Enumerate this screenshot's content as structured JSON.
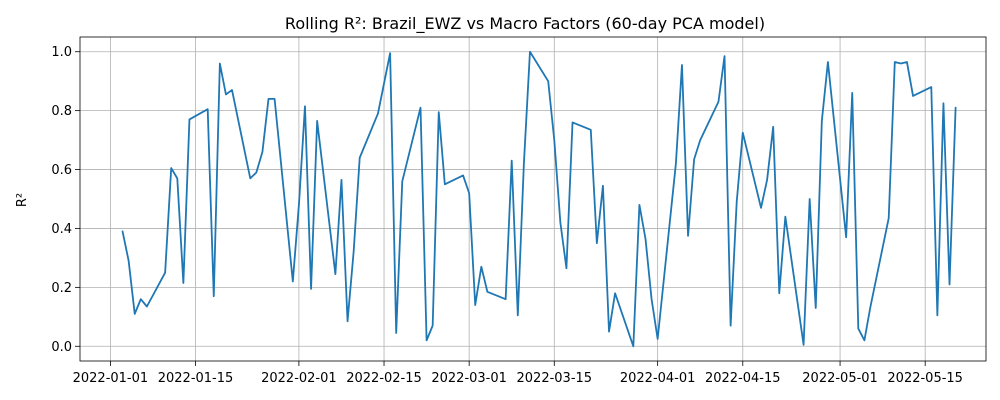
{
  "chart_data": {
    "type": "line",
    "title": "Rolling R²: Brazil_EWZ vs Macro Factors (60-day PCA model)",
    "xlabel": "",
    "ylabel": "R²",
    "xlim": [
      "2021-12-27",
      "2022-05-25"
    ],
    "ylim": [
      -0.05,
      1.05
    ],
    "grid": true,
    "x_ticks": [
      "2022-01-01",
      "2022-01-15",
      "2022-02-01",
      "2022-02-15",
      "2022-03-01",
      "2022-03-15",
      "2022-04-01",
      "2022-04-15",
      "2022-05-01",
      "2022-05-15"
    ],
    "y_ticks": [
      "0.0",
      "0.2",
      "0.4",
      "0.6",
      "0.8",
      "1.0"
    ],
    "series_color": "#1f77b4",
    "series": [
      {
        "points": [
          [
            "2022-01-03",
            0.39
          ],
          [
            "2022-01-04",
            0.29
          ],
          [
            "2022-01-05",
            0.11
          ],
          [
            "2022-01-06",
            0.16
          ],
          [
            "2022-01-07",
            0.135
          ],
          [
            "2022-01-10",
            0.25
          ],
          [
            "2022-01-11",
            0.605
          ],
          [
            "2022-01-12",
            0.57
          ],
          [
            "2022-01-13",
            0.215
          ],
          [
            "2022-01-14",
            0.77
          ],
          [
            "2022-01-17",
            0.805
          ],
          [
            "2022-01-18",
            0.17
          ],
          [
            "2022-01-19",
            0.96
          ],
          [
            "2022-01-20",
            0.855
          ],
          [
            "2022-01-21",
            0.87
          ],
          [
            "2022-01-24",
            0.57
          ],
          [
            "2022-01-25",
            0.59
          ],
          [
            "2022-01-26",
            0.66
          ],
          [
            "2022-01-27",
            0.84
          ],
          [
            "2022-01-28",
            0.84
          ],
          [
            "2022-01-31",
            0.22
          ],
          [
            "2022-02-01",
            0.48
          ],
          [
            "2022-02-02",
            0.815
          ],
          [
            "2022-02-03",
            0.195
          ],
          [
            "2022-02-04",
            0.765
          ],
          [
            "2022-02-07",
            0.245
          ],
          [
            "2022-02-08",
            0.565
          ],
          [
            "2022-02-09",
            0.085
          ],
          [
            "2022-02-10",
            0.32
          ],
          [
            "2022-02-11",
            0.64
          ],
          [
            "2022-02-14",
            0.79
          ],
          [
            "2022-02-16",
            0.995
          ],
          [
            "2022-02-17",
            0.045
          ],
          [
            "2022-02-18",
            0.56
          ],
          [
            "2022-02-21",
            0.81
          ],
          [
            "2022-02-22",
            0.02
          ],
          [
            "2022-02-23",
            0.07
          ],
          [
            "2022-02-24",
            0.795
          ],
          [
            "2022-02-25",
            0.55
          ],
          [
            "2022-02-28",
            0.58
          ],
          [
            "2022-03-01",
            0.52
          ],
          [
            "2022-03-02",
            0.14
          ],
          [
            "2022-03-03",
            0.27
          ],
          [
            "2022-03-04",
            0.185
          ],
          [
            "2022-03-07",
            0.16
          ],
          [
            "2022-03-08",
            0.63
          ],
          [
            "2022-03-09",
            0.105
          ],
          [
            "2022-03-10",
            0.62
          ],
          [
            "2022-03-11",
            1.0
          ],
          [
            "2022-03-14",
            0.9
          ],
          [
            "2022-03-15",
            0.7
          ],
          [
            "2022-03-16",
            0.42
          ],
          [
            "2022-03-17",
            0.265
          ],
          [
            "2022-03-18",
            0.76
          ],
          [
            "2022-03-21",
            0.735
          ],
          [
            "2022-03-22",
            0.35
          ],
          [
            "2022-03-23",
            0.545
          ],
          [
            "2022-03-24",
            0.05
          ],
          [
            "2022-03-25",
            0.18
          ],
          [
            "2022-03-28",
            0.0
          ],
          [
            "2022-03-29",
            0.48
          ],
          [
            "2022-03-30",
            0.365
          ],
          [
            "2022-03-31",
            0.16
          ],
          [
            "2022-04-01",
            0.025
          ],
          [
            "2022-04-04",
            0.62
          ],
          [
            "2022-04-05",
            0.955
          ],
          [
            "2022-04-06",
            0.375
          ],
          [
            "2022-04-07",
            0.635
          ],
          [
            "2022-04-08",
            0.7
          ],
          [
            "2022-04-11",
            0.83
          ],
          [
            "2022-04-12",
            0.985
          ],
          [
            "2022-04-13",
            0.07
          ],
          [
            "2022-04-14",
            0.49
          ],
          [
            "2022-04-15",
            0.725
          ],
          [
            "2022-04-18",
            0.47
          ],
          [
            "2022-04-19",
            0.565
          ],
          [
            "2022-04-20",
            0.745
          ],
          [
            "2022-04-21",
            0.18
          ],
          [
            "2022-04-22",
            0.44
          ],
          [
            "2022-04-25",
            0.005
          ],
          [
            "2022-04-26",
            0.5
          ],
          [
            "2022-04-27",
            0.13
          ],
          [
            "2022-04-28",
            0.765
          ],
          [
            "2022-04-29",
            0.965
          ],
          [
            "2022-05-02",
            0.37
          ],
          [
            "2022-05-03",
            0.86
          ],
          [
            "2022-05-04",
            0.06
          ],
          [
            "2022-05-05",
            0.02
          ],
          [
            "2022-05-06",
            0.135
          ],
          [
            "2022-05-09",
            0.435
          ],
          [
            "2022-05-10",
            0.965
          ],
          [
            "2022-05-11",
            0.96
          ],
          [
            "2022-05-12",
            0.965
          ],
          [
            "2022-05-13",
            0.85
          ],
          [
            "2022-05-16",
            0.88
          ],
          [
            "2022-05-17",
            0.105
          ],
          [
            "2022-05-18",
            0.825
          ],
          [
            "2022-05-19",
            0.21
          ],
          [
            "2022-05-20",
            0.81
          ]
        ]
      }
    ]
  }
}
